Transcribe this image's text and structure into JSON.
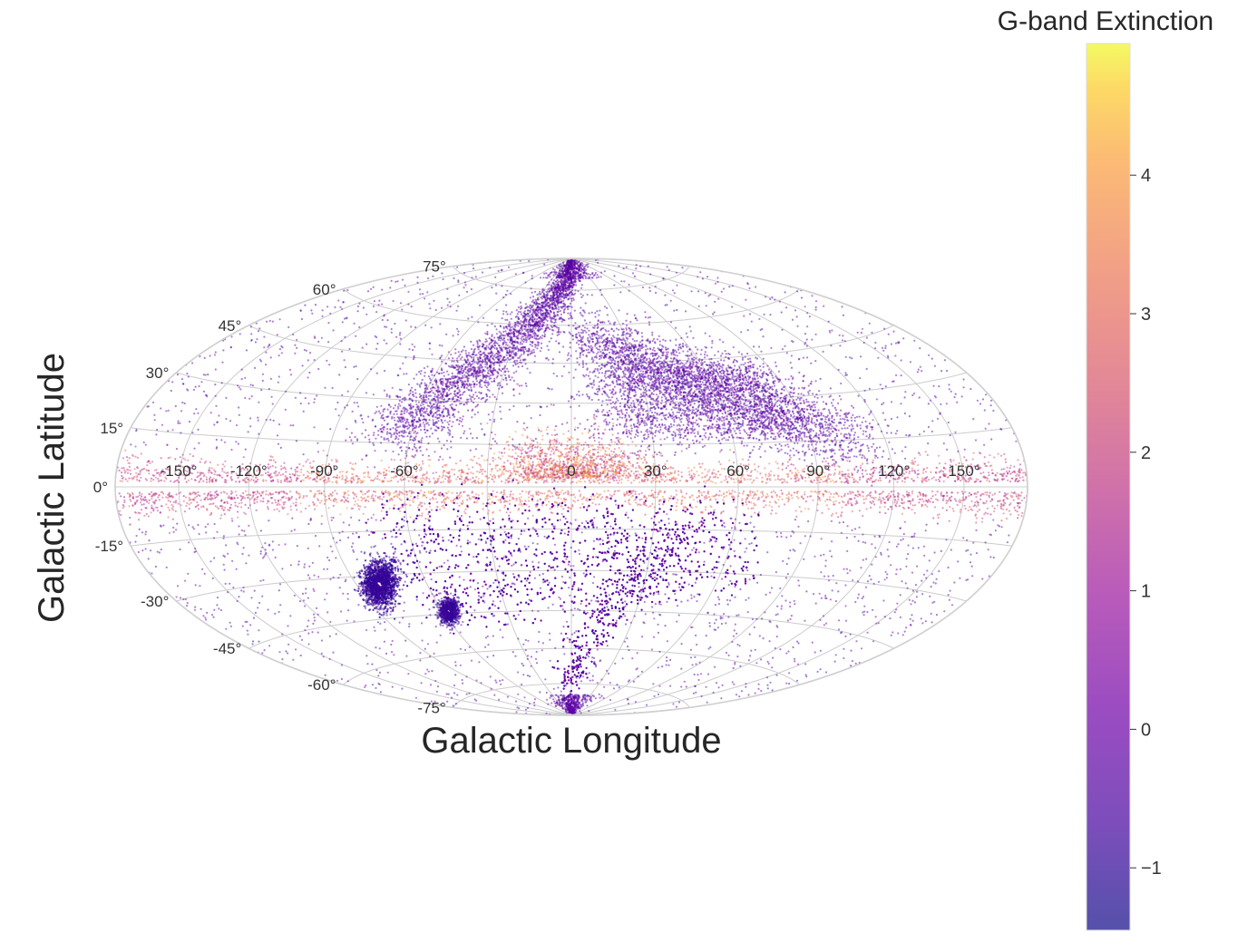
{
  "chart_data": {
    "type": "scatter",
    "projection": "aitoff/hammer (galactic coordinates)",
    "title": "",
    "xlabel": "Galactic Longitude",
    "ylabel": "Galactic Latitude",
    "xlim": [
      -180,
      180
    ],
    "ylim": [
      -90,
      90
    ],
    "grid": true,
    "x_ticks": [
      {
        "value": -150,
        "label": "-150°"
      },
      {
        "value": -120,
        "label": "-120°"
      },
      {
        "value": -90,
        "label": "-90°"
      },
      {
        "value": -60,
        "label": "-60°"
      },
      {
        "value": 0,
        "label": "0"
      },
      {
        "value": 30,
        "label": "30°"
      },
      {
        "value": 60,
        "label": "60°"
      },
      {
        "value": 90,
        "label": "90°"
      },
      {
        "value": 120,
        "label": "120°"
      },
      {
        "value": 150,
        "label": "150°"
      }
    ],
    "y_ticks": [
      {
        "value": 75,
        "label": "75°"
      },
      {
        "value": 60,
        "label": "60°"
      },
      {
        "value": 45,
        "label": "45°"
      },
      {
        "value": 30,
        "label": "30°"
      },
      {
        "value": 15,
        "label": "15°"
      },
      {
        "value": 0,
        "label": "0°"
      },
      {
        "value": -15,
        "label": "-15°"
      },
      {
        "value": -30,
        "label": "-30°"
      },
      {
        "value": -45,
        "label": "-45°"
      },
      {
        "value": -60,
        "label": "-60°"
      },
      {
        "value": -75,
        "label": "-75°"
      }
    ],
    "colorbar": {
      "label": "G-band Extinction",
      "colormap": "plasma",
      "range": [
        -1.45,
        4.95
      ],
      "ticks": [
        {
          "value": 4,
          "label": "4"
        },
        {
          "value": 3,
          "label": "3"
        },
        {
          "value": 2,
          "label": "2"
        },
        {
          "value": 1,
          "label": "1"
        },
        {
          "value": 0,
          "label": "0"
        },
        {
          "value": -1,
          "label": "−1"
        }
      ]
    },
    "point_alpha": 0.5,
    "colors": {
      "low": "#0d0887",
      "mid_low": "#6a00a8",
      "mid": "#b12a90",
      "mid_high": "#e16462",
      "high": "#fca636",
      "top": "#f0f921",
      "grid": "#cccccc"
    },
    "series": [
      {
        "structure": "galactic disk band",
        "lon_range": [
          -180,
          180
        ],
        "lat_center": 0,
        "lat_width": 8,
        "extinction_typical": 2.5
      },
      {
        "structure": "northern arc",
        "lon_range": [
          -80,
          120
        ],
        "lat_range": [
          15,
          85
        ],
        "extinction_typical": 0.1
      },
      {
        "structure": "southern arc",
        "lon_range": [
          -90,
          60
        ],
        "lat_range": [
          -85,
          -5
        ],
        "extinction_typical": 0.1
      },
      {
        "structure": "Large Magellanic Cloud",
        "lon": -80,
        "lat": -33,
        "extinction_typical": -0.5
      },
      {
        "structure": "Small Magellanic Cloud",
        "lon": -57,
        "lat": -44,
        "extinction_typical": -0.5
      },
      {
        "structure": "galactic bulge",
        "lon_range": [
          -30,
          30
        ],
        "lat_range": [
          3,
          20
        ],
        "extinction_typical": 2.8
      }
    ]
  }
}
